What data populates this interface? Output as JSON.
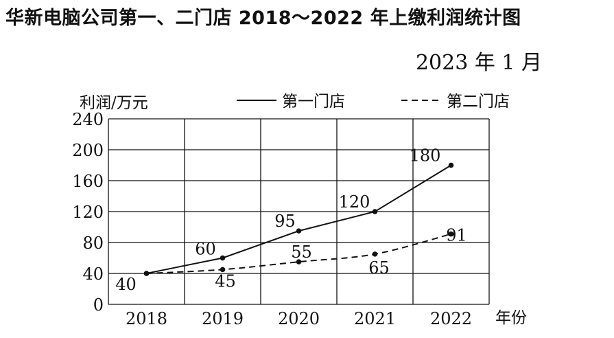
{
  "chart_data": {
    "type": "line",
    "title": "华新电脑公司第一、二门店 2018～2022 年上缴利润统计图",
    "subtitle": "2023 年 1 月",
    "ylabel": "利润/万元",
    "xlabel": "年份",
    "categories": [
      "2018",
      "2019",
      "2020",
      "2021",
      "2022"
    ],
    "yticks": [
      "0",
      "40",
      "80",
      "120",
      "160",
      "200",
      "240"
    ],
    "ylim": [
      0,
      240
    ],
    "grid": true,
    "legend_position": "top",
    "series": [
      {
        "name": "第一门店",
        "style": "solid",
        "values": [
          40,
          60,
          95,
          120,
          180
        ],
        "labels": [
          "40",
          "60",
          "95",
          "120",
          "180"
        ]
      },
      {
        "name": "第二门店",
        "style": "dashed",
        "values": [
          40,
          45,
          55,
          65,
          91
        ],
        "labels": [
          "",
          "45",
          "55",
          "65",
          "91"
        ]
      }
    ],
    "line_color": "#111111"
  }
}
